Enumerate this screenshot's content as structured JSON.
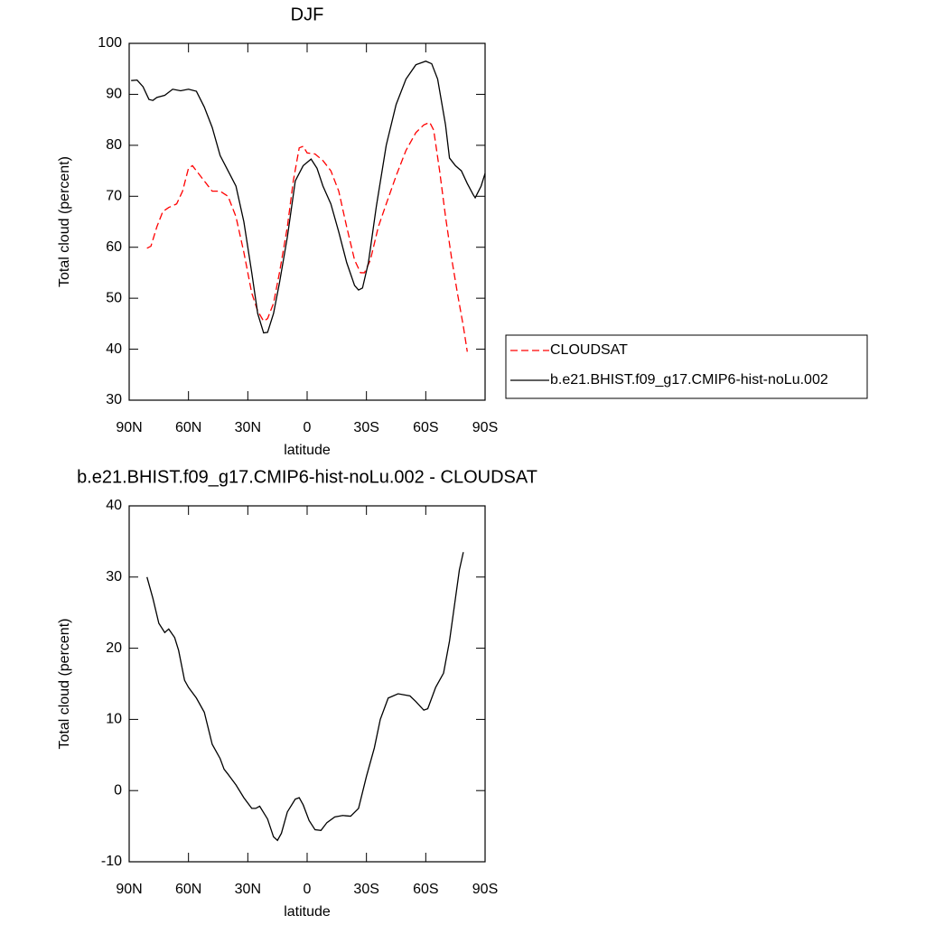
{
  "chart_data": [
    {
      "type": "line",
      "title": "DJF",
      "x_label": "latitude",
      "y_label": "Total cloud (percent)",
      "xlim": [
        90,
        -90
      ],
      "xticks": [
        {
          "value": 90,
          "label": "90N"
        },
        {
          "value": 60,
          "label": "60N"
        },
        {
          "value": 30,
          "label": "30N"
        },
        0,
        {
          "value": -30,
          "label": "30S"
        },
        {
          "value": -60,
          "label": "60S"
        },
        {
          "value": -90,
          "label": "90S"
        }
      ],
      "ylim": [
        30,
        100
      ],
      "yticks": [
        30,
        40,
        50,
        60,
        70,
        80,
        90,
        100
      ],
      "legend": "right",
      "series": [
        {
          "name": "CLOUDSAT",
          "color": "#ff0000",
          "dash": true,
          "x": [
            81,
            79,
            76,
            73,
            70,
            66,
            63,
            60,
            58,
            56,
            52,
            48,
            44,
            40,
            36,
            32,
            28,
            25,
            22,
            20,
            17,
            14,
            10,
            7,
            4,
            2,
            0,
            -4,
            -8,
            -12,
            -16,
            -20,
            -24,
            -27,
            -29,
            -32,
            -36,
            -40,
            -45,
            -50,
            -55,
            -59,
            -62,
            -64,
            -67,
            -70,
            -73,
            -76,
            -79,
            -81
          ],
          "values": [
            59.8,
            60.2,
            64,
            67,
            67.8,
            68.5,
            71,
            75.5,
            76,
            75,
            73,
            71,
            71,
            70,
            66,
            59,
            51,
            47.5,
            45.5,
            46,
            49,
            55,
            64,
            73,
            79.5,
            79.8,
            78.5,
            78.3,
            77,
            75,
            71,
            64,
            57.5,
            55,
            55,
            57.5,
            64,
            68.5,
            74,
            79,
            82.5,
            84,
            84.5,
            83,
            75,
            66,
            58,
            51,
            44.5,
            39.5
          ]
        },
        {
          "name": "b.e21.BHIST.f09_g17.CMIP6-hist-noLu.002",
          "color": "#000000",
          "dash": false,
          "x": [
            89,
            86,
            83,
            80,
            78,
            76,
            72,
            68,
            64,
            60,
            56,
            52,
            48,
            44,
            40,
            36,
            32,
            28,
            25,
            22,
            20,
            17,
            14,
            10,
            6,
            2,
            -2,
            -5,
            -8,
            -12,
            -16,
            -20,
            -24,
            -26,
            -28,
            -31,
            -35,
            -40,
            -45,
            -50,
            -55,
            -60,
            -63,
            -66,
            -70,
            -72,
            -75,
            -78,
            -81,
            -84,
            -85,
            -88,
            -90
          ],
          "values": [
            92.7,
            92.8,
            91.5,
            89.0,
            88.8,
            89.4,
            89.8,
            91.0,
            90.7,
            91.0,
            90.6,
            87.5,
            83.5,
            78,
            75,
            72,
            65,
            55,
            47,
            43.2,
            43.3,
            47,
            53,
            62,
            73,
            76,
            77.3,
            75.5,
            72,
            68.5,
            63,
            57,
            52.5,
            51.6,
            52,
            57,
            68,
            80,
            88,
            93,
            95.8,
            96.5,
            96,
            93,
            84,
            77.5,
            76,
            75,
            72.5,
            70.3,
            69.7,
            72,
            74.5
          ]
        }
      ]
    },
    {
      "type": "line",
      "title": "b.e21.BHIST.f09_g17.CMIP6-hist-noLu.002 - CLOUDSAT",
      "x_label": "latitude",
      "y_label": "Total cloud (percent)",
      "xlim": [
        90,
        -90
      ],
      "xticks": [
        {
          "value": 90,
          "label": "90N"
        },
        {
          "value": 60,
          "label": "60N"
        },
        {
          "value": 30,
          "label": "30N"
        },
        0,
        {
          "value": -30,
          "label": "30S"
        },
        {
          "value": -60,
          "label": "60S"
        },
        {
          "value": -90,
          "label": "90S"
        }
      ],
      "ylim": [
        -10,
        40
      ],
      "yticks": [
        -10,
        0,
        10,
        20,
        30,
        40
      ],
      "color": "#000000",
      "x": [
        81,
        78,
        75,
        72,
        70,
        67,
        65,
        62,
        60,
        56,
        52,
        48,
        44,
        42,
        40,
        36,
        32,
        28,
        26,
        24,
        20,
        17,
        15,
        13,
        10,
        6,
        4,
        2,
        -1,
        -4,
        -7,
        -10,
        -14,
        -18,
        -22,
        -26,
        -30,
        -34,
        -37,
        -41,
        -46,
        -52,
        -55,
        -59,
        -61,
        -65,
        -69,
        -72,
        -75,
        -77,
        -79
      ],
      "values": [
        30,
        27,
        23.5,
        22.2,
        22.7,
        21.5,
        19.7,
        15.5,
        14.5,
        13,
        11,
        6.5,
        4.5,
        3,
        2.3,
        0.8,
        -1,
        -2.5,
        -2.5,
        -2.2,
        -4,
        -6.5,
        -7,
        -6,
        -3,
        -1.2,
        -1,
        -2,
        -4.2,
        -5.5,
        -5.6,
        -4.5,
        -3.7,
        -3.5,
        -3.6,
        -2.5,
        2,
        6,
        10,
        13,
        13.6,
        13.3,
        12.5,
        11.3,
        11.5,
        14.5,
        16.5,
        21,
        27,
        31,
        33.5
      ]
    }
  ]
}
